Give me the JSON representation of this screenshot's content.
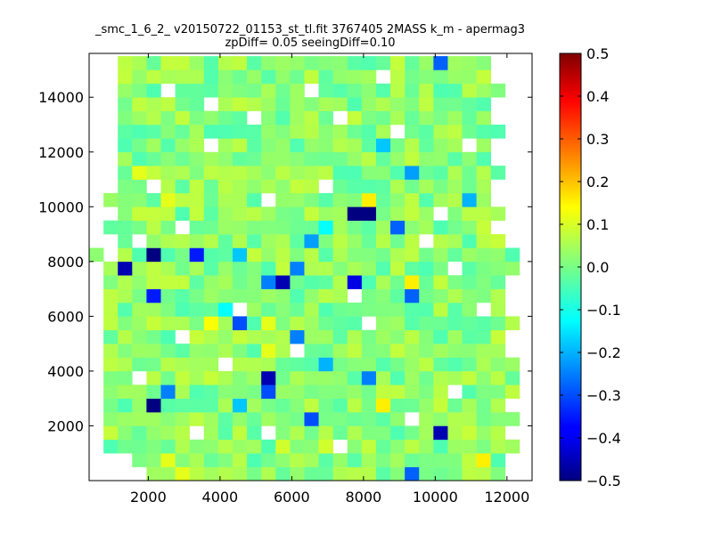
{
  "chart_data": {
    "type": "heatmap",
    "title_line1": "_smc_1_6_2_ v20150722_01153_st_tl.fit 3767405 2MASS k_m - apermag3",
    "title_line2": "zpDiff= 0.05 seeingDiff=0.10",
    "xlabel": "",
    "ylabel": "",
    "xlim": [
      350,
      12700
    ],
    "ylim": [
      0,
      15600
    ],
    "x_ticks": [
      2000,
      4000,
      6000,
      8000,
      10000,
      12000
    ],
    "x_tick_labels": [
      "2000",
      "4000",
      "6000",
      "8000",
      "10000",
      "12000"
    ],
    "y_ticks": [
      2000,
      4000,
      6000,
      8000,
      10000,
      12000,
      14000
    ],
    "y_tick_labels": [
      "2000",
      "4000",
      "6000",
      "8000",
      "10000",
      "12000",
      "14000"
    ],
    "grid": false,
    "colormap": "jet",
    "colorbar": {
      "vmin": -0.5,
      "vmax": 0.5,
      "ticks": [
        0.5,
        0.4,
        0.3,
        0.2,
        0.1,
        0.0,
        -0.1,
        -0.2,
        -0.3,
        -0.4,
        -0.5
      ],
      "tick_labels": [
        "0.5",
        "0.4",
        "0.3",
        "0.2",
        "0.1",
        "0.0",
        "−0.1",
        "−0.2",
        "−0.3",
        "−0.4",
        "−0.5"
      ]
    },
    "cell_width": 400,
    "cell_height": 500,
    "grid_x0": 350,
    "grid_y0": 0,
    "ncols": 31,
    "nrows": 31,
    "cells": [
      {
        "col": 2,
        "row": 30,
        "v": 0.06
      },
      {
        "col": 9,
        "row": 30,
        "v": 0.05
      },
      {
        "col": 24,
        "row": 30,
        "v": -0.28
      },
      {
        "col": 20,
        "row": 24,
        "v": -0.18
      },
      {
        "col": 3,
        "row": 22,
        "v": 0.1
      },
      {
        "col": 22,
        "row": 22,
        "v": -0.22
      },
      {
        "col": 5,
        "row": 20,
        "v": 0.1
      },
      {
        "col": 19,
        "row": 20,
        "v": 0.14
      },
      {
        "col": 26,
        "row": 20,
        "v": -0.2
      },
      {
        "col": 18,
        "row": 19,
        "v": -0.5
      },
      {
        "col": 19,
        "row": 19,
        "v": -0.5
      },
      {
        "col": 16,
        "row": 18,
        "v": -0.12
      },
      {
        "col": 21,
        "row": 18,
        "v": -0.28
      },
      {
        "col": 15,
        "row": 17,
        "v": -0.22
      },
      {
        "col": 4,
        "row": 16,
        "v": -0.5
      },
      {
        "col": 7,
        "row": 16,
        "v": -0.35
      },
      {
        "col": 10,
        "row": 16,
        "v": -0.18
      },
      {
        "col": 2,
        "row": 15,
        "v": -0.45
      },
      {
        "col": 14,
        "row": 15,
        "v": -0.25
      },
      {
        "col": 12,
        "row": 14,
        "v": -0.25
      },
      {
        "col": 13,
        "row": 14,
        "v": -0.45
      },
      {
        "col": 18,
        "row": 14,
        "v": -0.4
      },
      {
        "col": 22,
        "row": 14,
        "v": 0.14
      },
      {
        "col": 4,
        "row": 13,
        "v": -0.35
      },
      {
        "col": 22,
        "row": 13,
        "v": -0.28
      },
      {
        "col": 8,
        "row": 11,
        "v": 0.12
      },
      {
        "col": 10,
        "row": 11,
        "v": -0.3
      },
      {
        "col": 9,
        "row": 12,
        "v": -0.12
      },
      {
        "col": 12,
        "row": 11,
        "v": 0.1
      },
      {
        "col": 14,
        "row": 10,
        "v": -0.25
      },
      {
        "col": 12,
        "row": 9,
        "v": 0.1
      },
      {
        "col": 16,
        "row": 8,
        "v": -0.2
      },
      {
        "col": 12,
        "row": 7,
        "v": -0.45
      },
      {
        "col": 12,
        "row": 6,
        "v": -0.3
      },
      {
        "col": 19,
        "row": 7,
        "v": -0.25
      },
      {
        "col": 5,
        "row": 6,
        "v": -0.25
      },
      {
        "col": 4,
        "row": 5,
        "v": -0.5
      },
      {
        "col": 20,
        "row": 5,
        "v": 0.14
      },
      {
        "col": 10,
        "row": 5,
        "v": -0.18
      },
      {
        "col": 15,
        "row": 4,
        "v": -0.3
      },
      {
        "col": 24,
        "row": 3,
        "v": -0.45
      },
      {
        "col": 16,
        "row": 2,
        "v": 0.08
      },
      {
        "col": 27,
        "row": 1,
        "v": 0.14
      },
      {
        "col": 6,
        "row": 0,
        "v": 0.1
      },
      {
        "col": 22,
        "row": 0,
        "v": -0.28
      },
      {
        "col": 5,
        "row": 1,
        "v": 0.1
      },
      {
        "col": 11,
        "row": 1,
        "v": -0.05
      },
      {
        "col": 13,
        "row": 2,
        "v": 0.08
      }
    ],
    "empty_cells": [
      [
        0,
        0
      ],
      [
        1,
        0
      ],
      [
        2,
        0
      ],
      [
        3,
        0
      ],
      [
        0,
        1
      ],
      [
        1,
        1
      ],
      [
        2,
        1
      ],
      [
        29,
        0
      ],
      [
        30,
        0
      ],
      [
        30,
        1
      ],
      [
        29,
        1
      ],
      [
        30,
        2
      ],
      [
        0,
        2
      ],
      [
        0,
        3
      ],
      [
        29,
        3
      ],
      [
        30,
        3
      ],
      [
        30,
        4
      ],
      [
        0,
        4
      ],
      [
        0,
        5
      ],
      [
        30,
        5
      ],
      [
        29,
        5
      ],
      [
        0,
        6
      ],
      [
        30,
        6
      ],
      [
        30,
        7
      ],
      [
        0,
        7
      ],
      [
        30,
        8
      ],
      [
        0,
        8
      ],
      [
        0,
        9
      ],
      [
        29,
        9
      ],
      [
        30,
        9
      ],
      [
        30,
        10
      ],
      [
        0,
        10
      ],
      [
        29,
        10
      ],
      [
        0,
        11
      ],
      [
        30,
        11
      ],
      [
        29,
        12
      ],
      [
        30,
        12
      ],
      [
        0,
        12
      ],
      [
        0,
        13
      ],
      [
        29,
        13
      ],
      [
        30,
        13
      ],
      [
        0,
        14
      ],
      [
        30,
        14
      ],
      [
        29,
        14
      ],
      [
        0,
        15
      ],
      [
        30,
        15
      ],
      [
        30,
        16
      ],
      [
        1,
        16
      ],
      [
        0,
        17
      ],
      [
        1,
        17
      ],
      [
        30,
        17
      ],
      [
        29,
        17
      ],
      [
        0,
        18
      ],
      [
        30,
        18
      ],
      [
        28,
        18
      ],
      [
        29,
        18
      ],
      [
        0,
        19
      ],
      [
        1,
        19
      ],
      [
        30,
        19
      ],
      [
        29,
        19
      ],
      [
        0,
        20
      ],
      [
        30,
        20
      ],
      [
        29,
        20
      ],
      [
        28,
        20
      ],
      [
        0,
        21
      ],
      [
        1,
        21
      ],
      [
        30,
        21
      ],
      [
        29,
        21
      ],
      [
        28,
        21
      ],
      [
        0,
        22
      ],
      [
        1,
        22
      ],
      [
        30,
        22
      ],
      [
        29,
        22
      ],
      [
        0,
        23
      ],
      [
        1,
        23
      ],
      [
        30,
        23
      ],
      [
        29,
        23
      ],
      [
        28,
        23
      ],
      [
        0,
        24
      ],
      [
        1,
        24
      ],
      [
        30,
        24
      ],
      [
        29,
        24
      ],
      [
        28,
        24
      ],
      [
        0,
        25
      ],
      [
        1,
        25
      ],
      [
        30,
        25
      ],
      [
        29,
        25
      ],
      [
        0,
        26
      ],
      [
        1,
        26
      ],
      [
        30,
        26
      ],
      [
        29,
        26
      ],
      [
        28,
        26
      ],
      [
        0,
        27
      ],
      [
        1,
        27
      ],
      [
        30,
        27
      ],
      [
        29,
        27
      ],
      [
        28,
        27
      ],
      [
        0,
        28
      ],
      [
        1,
        28
      ],
      [
        30,
        28
      ],
      [
        29,
        28
      ],
      [
        0,
        29
      ],
      [
        1,
        29
      ],
      [
        30,
        29
      ],
      [
        29,
        29
      ],
      [
        28,
        29
      ],
      [
        0,
        30
      ],
      [
        1,
        30
      ],
      [
        30,
        30
      ],
      [
        29,
        30
      ],
      [
        28,
        30
      ],
      [
        7,
        3
      ],
      [
        12,
        3
      ],
      [
        17,
        2
      ],
      [
        22,
        4
      ],
      [
        9,
        8
      ],
      [
        14,
        9
      ],
      [
        18,
        13
      ],
      [
        6,
        18
      ],
      [
        24,
        19
      ],
      [
        16,
        21
      ],
      [
        12,
        20
      ],
      [
        21,
        25
      ],
      [
        8,
        27
      ],
      [
        5,
        28
      ],
      [
        15,
        28
      ],
      [
        20,
        29
      ],
      [
        3,
        17
      ],
      [
        25,
        15
      ],
      [
        10,
        12
      ],
      [
        6,
        10
      ],
      [
        19,
        11
      ],
      [
        23,
        17
      ],
      [
        26,
        24
      ],
      [
        11,
        26
      ],
      [
        4,
        21
      ],
      [
        17,
        26
      ],
      [
        27,
        12
      ],
      [
        3,
        7
      ],
      [
        25,
        6
      ],
      [
        8,
        24
      ]
    ],
    "base_value": 0.0,
    "value_jitter": 0.06
  }
}
